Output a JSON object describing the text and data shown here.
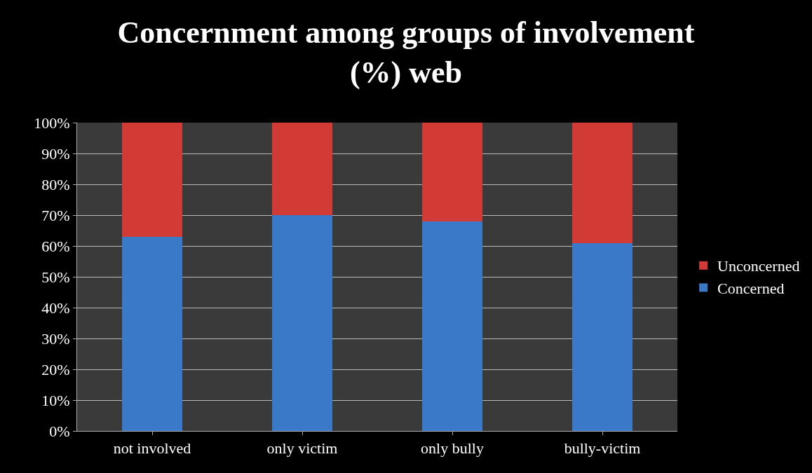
{
  "chart_data": {
    "type": "bar",
    "title": "Concernment among groups of involvement\n(%) web",
    "categories": [
      "not involved",
      "only victim",
      "only bully",
      "bully-victim"
    ],
    "stacked": true,
    "series": [
      {
        "name": "Concerned",
        "color": "#3a78c8",
        "values": [
          63,
          70,
          68,
          61
        ]
      },
      {
        "name": "Unconcerned",
        "color": "#d23a36",
        "values": [
          37,
          30,
          32,
          39
        ]
      }
    ],
    "ylim": [
      0,
      100
    ],
    "yticks": [
      {
        "value": 0,
        "label": "0%"
      },
      {
        "value": 10,
        "label": "10%"
      },
      {
        "value": 20,
        "label": "20%"
      },
      {
        "value": 30,
        "label": "30%"
      },
      {
        "value": 40,
        "label": "40%"
      },
      {
        "value": 50,
        "label": "50%"
      },
      {
        "value": 60,
        "label": "60%"
      },
      {
        "value": 70,
        "label": "70%"
      },
      {
        "value": 80,
        "label": "80%"
      },
      {
        "value": 90,
        "label": "90%"
      },
      {
        "value": 100,
        "label": "100%"
      }
    ],
    "grid": "y",
    "legend": "right"
  }
}
